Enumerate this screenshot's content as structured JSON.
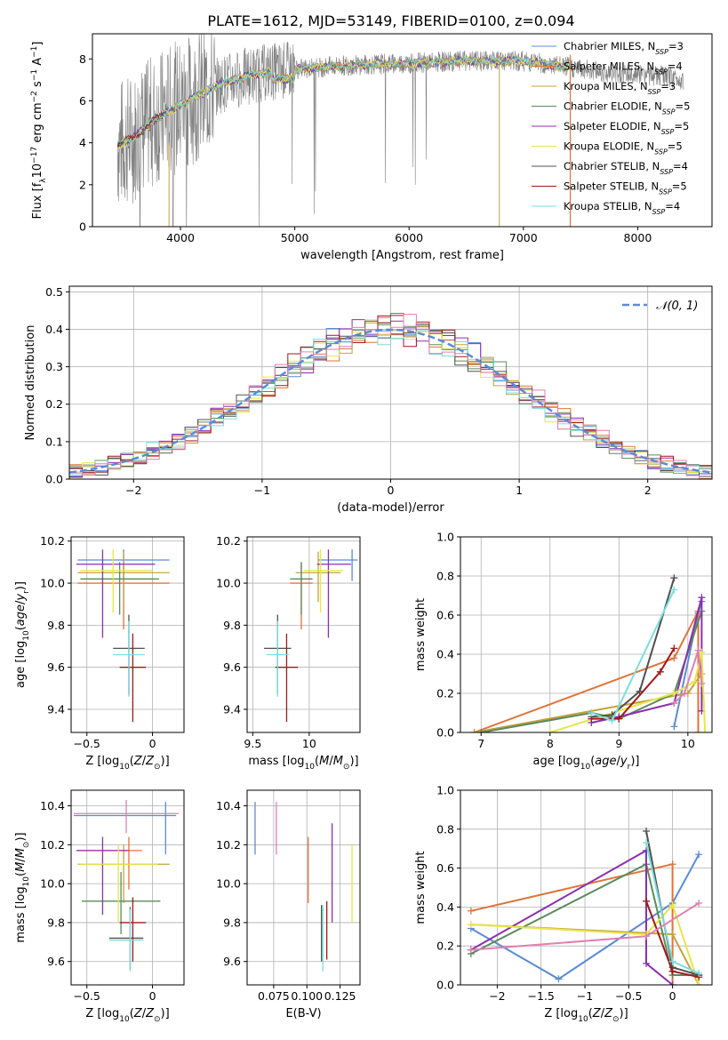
{
  "title": "PLATE=1612, MJD=53149, FIBERID=0100, z=0.094",
  "colors": {
    "Chabrier MILES": "#5b8bd8",
    "Salpeter MILES": "#e0733a",
    "Kroupa MILES": "#c4a23a",
    "Chabrier ELODIE": "#5c8a5c",
    "Salpeter ELODIE": "#8b2fb0",
    "Kroupa ELODIE": "#e6e64a",
    "Chabrier STELIB": "#505050",
    "Salpeter STELIB": "#a01818",
    "Kroupa STELIB": "#7adede",
    "data": "#808080",
    "normal": "#5b8bd8",
    "pink": "#e07fb0"
  },
  "chart_data": [
    {
      "id": "spectrum",
      "type": "line",
      "xlabel": "wavelength [Angstrom, rest frame]",
      "ylabel_parts": [
        "Flux [f",
        "λ",
        "10",
        "−17",
        " erg cm",
        "−2",
        " s",
        "−1",
        " A",
        "−1",
        "]"
      ],
      "xlim": [
        3230,
        8650
      ],
      "ylim": [
        0,
        9.2
      ],
      "xticks": [
        4000,
        5000,
        6000,
        7000,
        8000
      ],
      "yticks": [
        0,
        2,
        4,
        6,
        8
      ],
      "legend": [
        {
          "label": "Chabrier MILES",
          "nssp": "3"
        },
        {
          "label": "Salpeter MILES",
          "nssp": "4"
        },
        {
          "label": "Kroupa MILES",
          "nssp": "3"
        },
        {
          "label": "Chabrier ELODIE",
          "nssp": "5"
        },
        {
          "label": "Salpeter ELODIE",
          "nssp": "5"
        },
        {
          "label": "Kroupa ELODIE",
          "nssp": "5"
        },
        {
          "label": "Chabrier STELIB",
          "nssp": "4"
        },
        {
          "label": "Salpeter STELIB",
          "nssp": "5"
        },
        {
          "label": "Kroupa STELIB",
          "nssp": "4"
        }
      ],
      "nssp_label": "N",
      "nssp_sub": "SSP",
      "continuum": {
        "x": [
          3450,
          3600,
          3800,
          4000,
          4200,
          4400,
          4600,
          4800,
          5000,
          5200,
          5500,
          6000,
          6500,
          7000,
          7400,
          7800,
          8200,
          8400
        ],
        "y": [
          3.9,
          4.3,
          5.2,
          5.8,
          6.4,
          6.9,
          7.2,
          7.4,
          7.5,
          7.6,
          7.7,
          7.8,
          7.9,
          7.9,
          7.6,
          7.3,
          7.2,
          7.0
        ]
      },
      "models_xrange": [
        3450,
        7410
      ],
      "stelib_xrange": [
        3450,
        3880
      ]
    },
    {
      "id": "residuals",
      "type": "histogram",
      "xlabel": "(data-model)/error",
      "ylabel": "Normed distribution",
      "xlim": [
        -2.5,
        2.5
      ],
      "ylim": [
        0,
        0.515
      ],
      "xticks": [
        -2,
        -1,
        0,
        1,
        2
      ],
      "yticks": [
        0.0,
        0.1,
        0.2,
        0.3,
        0.4,
        0.5
      ],
      "legend": [
        {
          "label": "𝒩(0, 1)"
        }
      ],
      "bin_width": 0.1
    },
    {
      "id": "Z-age",
      "type": "errorbar",
      "xlabel": "Z [log10(Z/Z⊙)]",
      "ylabel": "age [log10(age/yr)]",
      "xlim": [
        -0.62,
        0.24
      ],
      "ylim": [
        9.29,
        10.22
      ],
      "xticks": [
        -0.5,
        0.0
      ],
      "yticks": [
        9.4,
        9.6,
        9.8,
        10.0,
        10.2
      ],
      "points": [
        {
          "model": "Chabrier MILES",
          "x": -0.22,
          "y": 10.11,
          "xerr": [
            0.35,
            0.35
          ],
          "yerr": [
            0.1,
            0.05
          ]
        },
        {
          "model": "Salpeter MILES",
          "x": -0.22,
          "y": 10.0,
          "xerr": [
            0.35,
            0.35
          ],
          "yerr": [
            0.22,
            0.1
          ]
        },
        {
          "model": "Kroupa MILES",
          "x": -0.22,
          "y": 10.05,
          "xerr": [
            0.35,
            0.35
          ],
          "yerr": [
            0.14,
            0.1
          ]
        },
        {
          "model": "Chabrier ELODIE",
          "x": -0.25,
          "y": 10.02,
          "xerr": [
            0.3,
            0.3
          ],
          "yerr": [
            0.17,
            0.08
          ]
        },
        {
          "model": "Salpeter ELODIE",
          "x": -0.38,
          "y": 10.09,
          "xerr": [
            0.2,
            0.4
          ],
          "yerr": [
            0.35,
            0.07
          ]
        },
        {
          "model": "Kroupa ELODIE",
          "x": -0.3,
          "y": 10.06,
          "xerr": [
            0.25,
            0.3
          ],
          "yerr": [
            0.2,
            0.1
          ]
        },
        {
          "model": "Chabrier STELIB",
          "x": -0.18,
          "y": 9.69,
          "xerr": [
            0.12,
            0.12
          ],
          "yerr": [
            0.22,
            0.16
          ]
        },
        {
          "model": "Salpeter STELIB",
          "x": -0.15,
          "y": 9.6,
          "xerr": [
            0.1,
            0.1
          ],
          "yerr": [
            0.26,
            0.16
          ]
        },
        {
          "model": "Kroupa STELIB",
          "x": -0.18,
          "y": 9.66,
          "xerr": [
            0.12,
            0.12
          ],
          "yerr": [
            0.2,
            0.16
          ]
        }
      ]
    },
    {
      "id": "mass-age",
      "type": "errorbar",
      "xlabel": "mass [log10(M/M⊙)]",
      "ylabel": "",
      "xlim": [
        9.45,
        10.45
      ],
      "ylim": [
        9.29,
        10.22
      ],
      "xticks": [
        9.5,
        10.0
      ],
      "yticks": [
        9.4,
        9.6,
        9.8,
        10.0,
        10.2
      ],
      "points": [
        {
          "model": "Chabrier MILES",
          "x": 10.38,
          "y": 10.11,
          "xerr": [
            0.3,
            0.05
          ],
          "yerr": [
            0.1,
            0.05
          ]
        },
        {
          "model": "Salpeter MILES",
          "x": 9.93,
          "y": 10.0,
          "xerr": [
            0.1,
            0.1
          ],
          "yerr": [
            0.22,
            0.1
          ]
        },
        {
          "model": "Kroupa MILES",
          "x": 10.08,
          "y": 10.05,
          "xerr": [
            0.2,
            0.2
          ],
          "yerr": [
            0.14,
            0.1
          ]
        },
        {
          "model": "Chabrier ELODIE",
          "x": 9.93,
          "y": 10.02,
          "xerr": [
            0.1,
            0.1
          ],
          "yerr": [
            0.17,
            0.08
          ]
        },
        {
          "model": "Salpeter ELODIE",
          "x": 10.17,
          "y": 10.09,
          "xerr": [
            0.1,
            0.2
          ],
          "yerr": [
            0.35,
            0.07
          ]
        },
        {
          "model": "Kroupa ELODIE",
          "x": 10.1,
          "y": 10.06,
          "xerr": [
            0.15,
            0.2
          ],
          "yerr": [
            0.2,
            0.1
          ]
        },
        {
          "model": "Chabrier STELIB",
          "x": 9.72,
          "y": 9.69,
          "xerr": [
            0.12,
            0.12
          ],
          "yerr": [
            0.22,
            0.16
          ]
        },
        {
          "model": "Salpeter STELIB",
          "x": 9.8,
          "y": 9.6,
          "xerr": [
            0.1,
            0.1
          ],
          "yerr": [
            0.26,
            0.16
          ]
        },
        {
          "model": "Kroupa STELIB",
          "x": 9.72,
          "y": 9.66,
          "xerr": [
            0.1,
            0.1
          ],
          "yerr": [
            0.2,
            0.16
          ]
        }
      ]
    },
    {
      "id": "age-weight",
      "type": "line",
      "xlabel": "age [log10(age/yr)]",
      "ylabel": "mass weight",
      "xlim": [
        6.7,
        10.35
      ],
      "ylim": [
        0,
        1.0
      ],
      "xticks": [
        7,
        8,
        9,
        10
      ],
      "yticks": [
        0.0,
        0.2,
        0.4,
        0.6,
        0.8,
        1.0
      ],
      "series": [
        {
          "model": "Chabrier MILES",
          "x": [
            9.8,
            10.15,
            10.2
          ],
          "y": [
            0.03,
            0.61,
            0.67
          ]
        },
        {
          "model": "Salpeter MILES",
          "x": [
            6.9,
            9.8,
            10.15,
            10.15
          ],
          "y": [
            0.0,
            0.38,
            0.62,
            0.0
          ]
        },
        {
          "model": "Kroupa MILES",
          "x": [
            6.9,
            10.0,
            10.2
          ],
          "y": [
            0.0,
            0.2,
            0.3
          ]
        },
        {
          "model": "Chabrier ELODIE",
          "x": [
            7.0,
            8.6,
            9.0,
            9.8,
            10.2
          ],
          "y": [
            0.0,
            0.1,
            0.07,
            0.2,
            0.62
          ]
        },
        {
          "model": "Salpeter ELODIE",
          "x": [
            8.6,
            9.0,
            9.8,
            10.2,
            10.2
          ],
          "y": [
            0.05,
            0.08,
            0.15,
            0.69,
            0.11
          ]
        },
        {
          "model": "Kroupa ELODIE",
          "x": [
            8.0,
            9.8,
            10.1,
            10.2,
            10.25
          ],
          "y": [
            0.0,
            0.2,
            0.26,
            0.41,
            0.0
          ]
        },
        {
          "model": "Chabrier STELIB",
          "x": [
            8.6,
            8.9,
            9.3,
            9.8
          ],
          "y": [
            0.08,
            0.09,
            0.21,
            0.79
          ]
        },
        {
          "model": "Salpeter STELIB",
          "x": [
            8.6,
            9.0,
            9.6,
            9.8
          ],
          "y": [
            0.07,
            0.07,
            0.31,
            0.43
          ]
        },
        {
          "model": "Kroupa STELIB",
          "x": [
            8.6,
            8.9,
            9.8
          ],
          "y": [
            0.1,
            0.06,
            0.73
          ]
        },
        {
          "model": "pink",
          "x": [
            9.8,
            9.95,
            10.15,
            10.2
          ],
          "y": [
            0.15,
            0.2,
            0.42,
            0.25
          ]
        }
      ]
    },
    {
      "id": "Z-mass",
      "type": "errorbar",
      "xlabel": "Z [log10(Z/Z⊙)]",
      "ylabel": "mass [log10(M/M⊙)]",
      "xlim": [
        -0.62,
        0.24
      ],
      "ylim": [
        9.48,
        10.48
      ],
      "xticks": [
        -0.5,
        0.0
      ],
      "yticks": [
        9.6,
        9.8,
        10.0,
        10.2,
        10.4
      ],
      "points": [
        {
          "model": "Chabrier MILES",
          "x": 0.1,
          "y": 10.35,
          "xerr": [
            0.7,
            0.08
          ],
          "yerr": [
            0.2,
            0.07
          ]
        },
        {
          "model": "Salpeter MILES",
          "x": -0.18,
          "y": 10.17,
          "xerr": [
            0.4,
            0.1
          ],
          "yerr": [
            0.2,
            0.07
          ]
        },
        {
          "model": "Kroupa MILES",
          "x": -0.22,
          "y": 10.1,
          "xerr": [
            0.35,
            0.35
          ],
          "yerr": [
            0.2,
            0.1
          ]
        },
        {
          "model": "Chabrier ELODIE",
          "x": -0.24,
          "y": 9.91,
          "xerr": [
            0.3,
            0.3
          ],
          "yerr": [
            0.17,
            0.15
          ]
        },
        {
          "model": "Salpeter ELODIE",
          "x": -0.38,
          "y": 10.17,
          "xerr": [
            0.2,
            0.2
          ],
          "yerr": [
            0.33,
            0.07
          ]
        },
        {
          "model": "Kroupa ELODIE",
          "x": -0.26,
          "y": 10.1,
          "xerr": [
            0.3,
            0.3
          ],
          "yerr": [
            0.3,
            0.1
          ]
        },
        {
          "model": "Chabrier STELIB",
          "x": -0.17,
          "y": 9.72,
          "xerr": [
            0.16,
            0.1
          ],
          "yerr": [
            0.16,
            0.16
          ]
        },
        {
          "model": "Salpeter STELIB",
          "x": -0.15,
          "y": 9.8,
          "xerr": [
            0.1,
            0.1
          ],
          "yerr": [
            0.2,
            0.13
          ]
        },
        {
          "model": "Kroupa STELIB",
          "x": -0.17,
          "y": 9.71,
          "xerr": [
            0.16,
            0.1
          ],
          "yerr": [
            0.16,
            0.16
          ]
        },
        {
          "model": "pink",
          "x": -0.2,
          "y": 10.36,
          "xerr": [
            0.4,
            0.4
          ],
          "yerr": [
            0.1,
            0.07
          ]
        }
      ]
    },
    {
      "id": "ebv-mass",
      "type": "errorbar",
      "xlabel": "E(B-V)",
      "ylabel": "",
      "xlim": [
        0.055,
        0.14
      ],
      "ylim": [
        9.48,
        10.48
      ],
      "xticks": [
        0.075,
        0.1,
        0.125
      ],
      "xtick_labels": [
        "0.075",
        "0.100",
        "0.125"
      ],
      "yticks": [
        9.6,
        9.8,
        10.0,
        10.2,
        10.4
      ],
      "points": [
        {
          "model": "Chabrier MILES",
          "x": 0.061,
          "y": 10.3,
          "xerr": [
            0,
            0
          ],
          "yerr": [
            0.15,
            0.12
          ]
        },
        {
          "model": "pink",
          "x": 0.077,
          "y": 10.3,
          "xerr": [
            0,
            0
          ],
          "yerr": [
            0.15,
            0.12
          ]
        },
        {
          "model": "Salpeter MILES",
          "x": 0.101,
          "y": 10.07,
          "xerr": [
            0,
            0
          ],
          "yerr": [
            0.17,
            0.17
          ]
        },
        {
          "model": "Salpeter ELODIE",
          "x": 0.119,
          "y": 10.06,
          "xerr": [
            0,
            0
          ],
          "yerr": [
            0.26,
            0.25
          ]
        },
        {
          "model": "Kroupa ELODIE",
          "x": 0.134,
          "y": 10.0,
          "xerr": [
            0,
            0
          ],
          "yerr": [
            0.2,
            0.2
          ]
        },
        {
          "model": "Chabrier STELIB",
          "x": 0.111,
          "y": 9.74,
          "xerr": [
            0,
            0
          ],
          "yerr": [
            0.14,
            0.15
          ]
        },
        {
          "model": "Kroupa STELIB",
          "x": 0.112,
          "y": 9.73,
          "xerr": [
            0,
            0
          ],
          "yerr": [
            0.18,
            0.16
          ]
        },
        {
          "model": "Salpeter STELIB",
          "x": 0.115,
          "y": 9.77,
          "xerr": [
            0,
            0
          ],
          "yerr": [
            0.16,
            0.14
          ]
        }
      ]
    },
    {
      "id": "Z-weight",
      "type": "line",
      "xlabel": "Z [log10(Z/Z⊙)]",
      "ylabel": "mass weight",
      "xlim": [
        -2.42,
        0.45
      ],
      "ylim": [
        0,
        1.0
      ],
      "xticks": [
        -2.0,
        -1.5,
        -1.0,
        -0.5,
        0.0
      ],
      "yticks": [
        0.0,
        0.2,
        0.4,
        0.6,
        0.8,
        1.0
      ],
      "series": [
        {
          "model": "Chabrier MILES",
          "x": [
            -2.3,
            -1.3,
            0.0,
            0.3
          ],
          "y": [
            0.29,
            0.03,
            0.42,
            0.67
          ]
        },
        {
          "model": "Salpeter MILES",
          "x": [
            -2.3,
            0.0,
            0.0
          ],
          "y": [
            0.38,
            0.62,
            0.0
          ]
        },
        {
          "model": "Kroupa MILES",
          "x": [
            -2.3,
            0.0,
            0.3
          ],
          "y": [
            0.31,
            0.26,
            0.0
          ]
        },
        {
          "model": "Chabrier ELODIE",
          "x": [
            -2.3,
            -0.3,
            0.0,
            0.3
          ],
          "y": [
            0.16,
            0.62,
            0.05,
            0.05
          ]
        },
        {
          "model": "Salpeter ELODIE",
          "x": [
            -2.3,
            -0.3,
            -0.3,
            0.0
          ],
          "y": [
            0.18,
            0.69,
            0.11,
            0.0
          ]
        },
        {
          "model": "Kroupa ELODIE",
          "x": [
            -2.3,
            -0.3,
            0.0,
            0.3
          ],
          "y": [
            0.31,
            0.26,
            0.41,
            0.0
          ]
        },
        {
          "model": "Chabrier STELIB",
          "x": [
            -0.3,
            0.0,
            0.3
          ],
          "y": [
            0.79,
            0.09,
            0.05
          ]
        },
        {
          "model": "Salpeter STELIB",
          "x": [
            -0.3,
            0.0,
            0.3
          ],
          "y": [
            0.43,
            0.07,
            0.04
          ]
        },
        {
          "model": "Kroupa STELIB",
          "x": [
            -0.3,
            0.0,
            0.3
          ],
          "y": [
            0.73,
            0.12,
            0.06
          ]
        },
        {
          "model": "pink",
          "x": [
            -2.3,
            -0.3,
            0.3
          ],
          "y": [
            0.18,
            0.25,
            0.42
          ]
        }
      ]
    }
  ]
}
